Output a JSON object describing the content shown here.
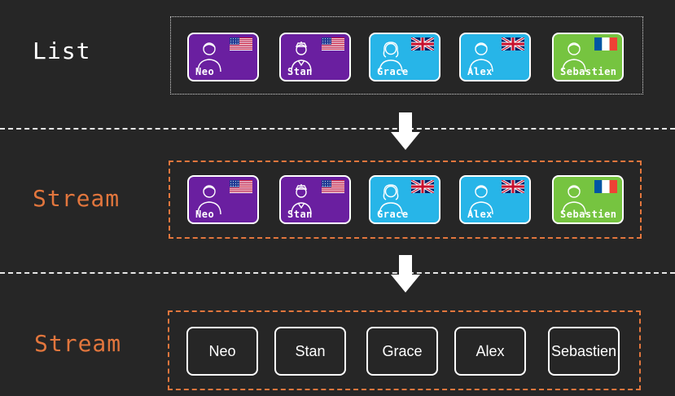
{
  "colors": {
    "background": "#262626",
    "stream_accent": "#e2763d",
    "us_user": "#6a1fa0",
    "uk_user": "#27b5e8",
    "fr_user": "#76c440"
  },
  "rows": {
    "list": {
      "label": "List"
    },
    "stream": {
      "label": "Stream"
    },
    "stream_names": {
      "label": "Stream"
    }
  },
  "users": [
    {
      "name": "Neo",
      "country": "us",
      "avatar": "man-icon"
    },
    {
      "name": "Stan",
      "country": "us",
      "avatar": "man-with-cap-icon"
    },
    {
      "name": "Grace",
      "country": "uk",
      "avatar": "woman-icon"
    },
    {
      "name": "Alex",
      "country": "uk",
      "avatar": "man-icon"
    },
    {
      "name": "Sebastien",
      "country": "fr",
      "avatar": "man-icon"
    }
  ]
}
